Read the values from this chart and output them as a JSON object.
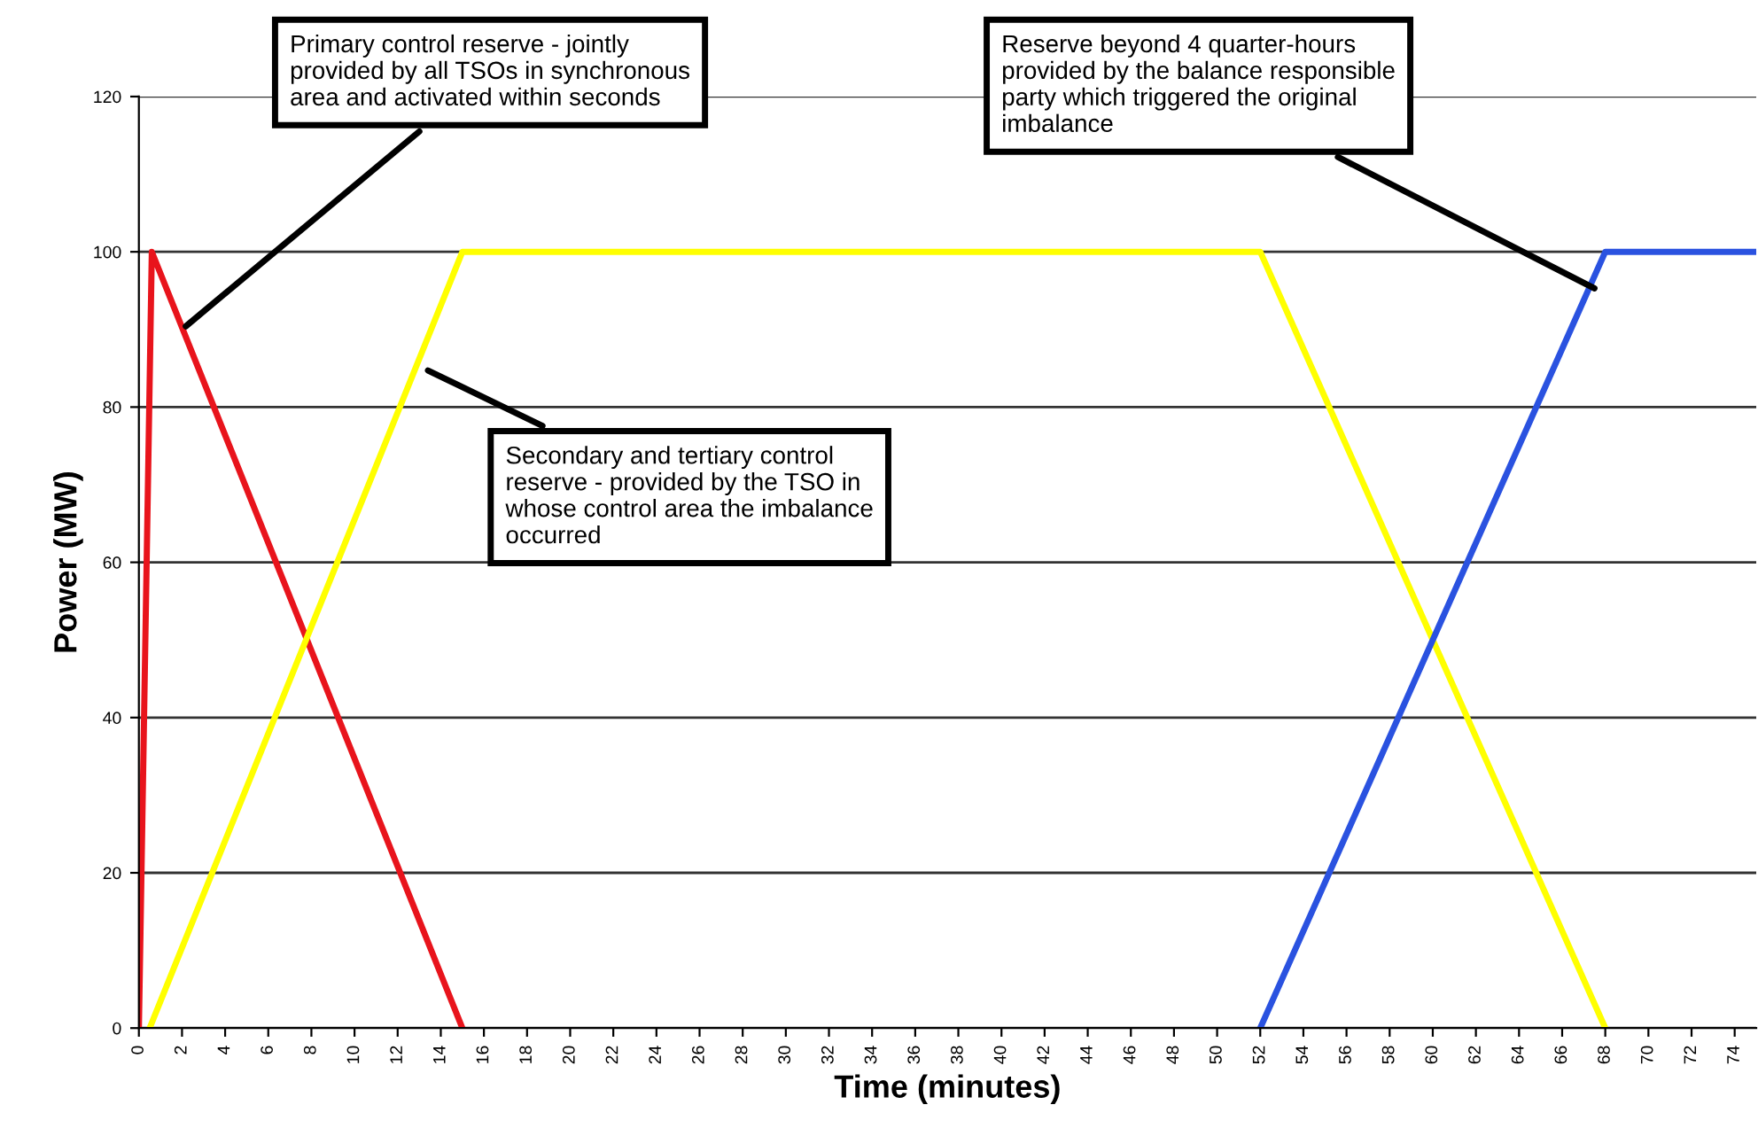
{
  "chart_data": {
    "type": "line",
    "xlabel": "Time (minutes)",
    "ylabel": "Power (MW)",
    "xlim": [
      0,
      75
    ],
    "xticks": [
      0,
      2,
      4,
      6,
      8,
      10,
      12,
      14,
      16,
      18,
      20,
      22,
      24,
      26,
      28,
      30,
      32,
      34,
      36,
      38,
      40,
      42,
      44,
      46,
      48,
      50,
      52,
      54,
      56,
      58,
      60,
      62,
      64,
      66,
      68,
      70,
      72,
      74
    ],
    "ylim": [
      0,
      120
    ],
    "yticks": [
      0,
      20,
      40,
      60,
      80,
      100,
      120
    ],
    "grid": "y",
    "legend": false,
    "marker": "none",
    "line_style": "solid",
    "series": [
      {
        "color": "#e8141c",
        "x": [
          0,
          0.6,
          15
        ],
        "values": [
          0,
          100,
          0
        ]
      },
      {
        "color": "#ffff00",
        "x": [
          0.5,
          15,
          52,
          68
        ],
        "values": [
          0,
          100,
          100,
          0
        ]
      },
      {
        "color": "#2a52e0",
        "x": [
          52,
          68,
          75
        ],
        "values": [
          0,
          100,
          100
        ]
      }
    ],
    "annotations": [
      {
        "text": "Primary control reserve - jointly\nprovided by all TSOs in synchronous\narea and activated within seconds",
        "x": 2,
        "y": 90
      },
      {
        "text": "Secondary and tertiary control\nreserve - provided by the TSO in\nwhose control area the imbalance\noccurred",
        "x": 13.2,
        "y": 85
      },
      {
        "text": "Reserve beyond 4 quarter-hours\nprovided by the balance responsible\nparty which triggered the original\nimbalance",
        "x": 67.7,
        "y": 95
      }
    ]
  }
}
